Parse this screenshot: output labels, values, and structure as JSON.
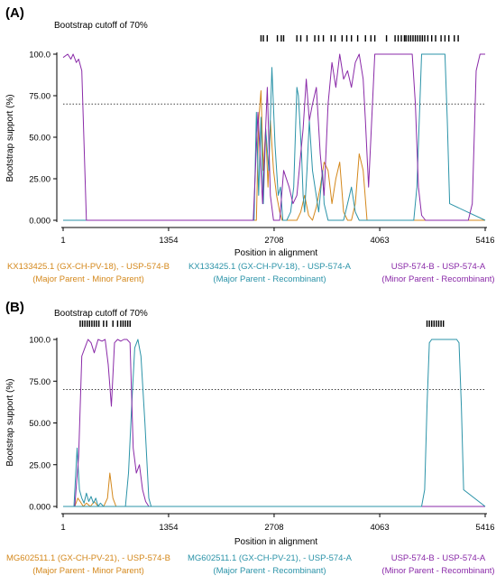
{
  "colors": {
    "orange": "#d4881c",
    "teal": "#2b93a8",
    "purple": "#8a2aa8",
    "axis": "#000000",
    "cutoff_line": "#444444"
  },
  "chart_data": [
    {
      "type": "line",
      "panel_label": "(A)",
      "cutoff_label": "Bootstrap cutoff of 70%",
      "xlabel": "Position in alignment",
      "ylabel": "Bootstrap support (%)",
      "xlim": [
        1,
        5416
      ],
      "ylim": [
        0,
        100
      ],
      "x_ticks": [
        1,
        1354,
        2708,
        4063,
        5416
      ],
      "x_tick_labels": [
        "1",
        "1354",
        "2708",
        "4063",
        "5416"
      ],
      "y_ticks": [
        0,
        25,
        50,
        75,
        100
      ],
      "y_tick_labels": [
        "0.000",
        "25.00",
        "50.00",
        "75.00",
        "100.0"
      ],
      "cutoff": 70,
      "breakpoints": [
        2540,
        2570,
        2620,
        2750,
        2800,
        2830,
        3000,
        3050,
        3130,
        3230,
        3280,
        3340,
        3440,
        3490,
        3580,
        3640,
        3700,
        3780,
        3880,
        3950,
        4000,
        4150,
        4260,
        4300,
        4340,
        4380,
        4400,
        4430,
        4460,
        4490,
        4520,
        4550,
        4580,
        4610,
        4640,
        4680,
        4730,
        4780,
        4850,
        4900,
        4950,
        5020,
        5070
      ],
      "legend": [
        {
          "series": 0,
          "line1": "KX133425.1 (GX-CH-PV-18), - USP-574-B",
          "line2": "(Major Parent - Minor Parent)"
        },
        {
          "series": 1,
          "line1": "KX133425.1 (GX-CH-PV-18), - USP-574-A",
          "line2": "(Major Parent - Recombinant)"
        },
        {
          "series": 2,
          "line1": "USP-574-B - USP-574-A",
          "line2": "(Minor Parent - Recombinant)"
        }
      ],
      "series": [
        {
          "color": "orange",
          "x": [
            1,
            2480,
            2510,
            2540,
            2570,
            2600,
            2630,
            2660,
            2700,
            2740,
            2780,
            2810,
            2850,
            3000,
            3050,
            3100,
            3150,
            3200,
            3250,
            3300,
            3350,
            3400,
            3450,
            3500,
            3550,
            3600,
            3650,
            3700,
            3750,
            3800,
            3850,
            3900,
            5416
          ],
          "y": [
            0,
            0,
            60,
            78,
            30,
            55,
            20,
            60,
            30,
            15,
            5,
            0,
            0,
            0,
            5,
            15,
            3,
            0,
            8,
            20,
            35,
            30,
            10,
            25,
            35,
            5,
            0,
            0,
            10,
            40,
            30,
            0,
            0
          ]
        },
        {
          "color": "teal",
          "x": [
            1,
            2450,
            2480,
            2510,
            2540,
            2570,
            2600,
            2640,
            2680,
            2720,
            2760,
            2790,
            2820,
            2870,
            2920,
            2960,
            3000,
            3020,
            3060,
            3080,
            3100,
            3130,
            3160,
            3200,
            3280,
            3330,
            3350,
            3400,
            3600,
            3650,
            3700,
            3750,
            3800,
            3900,
            4500,
            4540,
            4570,
            4600,
            4650,
            4700,
            4900,
            4930,
            4960,
            5416
          ],
          "y": [
            0,
            0,
            65,
            15,
            62,
            10,
            55,
            30,
            92,
            45,
            15,
            20,
            0,
            0,
            5,
            20,
            80,
            75,
            40,
            15,
            5,
            30,
            60,
            30,
            5,
            30,
            10,
            0,
            0,
            10,
            20,
            5,
            0,
            0,
            0,
            20,
            60,
            100,
            100,
            100,
            100,
            60,
            10,
            0
          ]
        },
        {
          "color": "purple",
          "x": [
            1,
            60,
            100,
            130,
            170,
            200,
            240,
            300,
            400,
            2440,
            2500,
            2560,
            2620,
            2660,
            2700,
            2740,
            2780,
            2830,
            2900,
            2950,
            3000,
            3050,
            3080,
            3120,
            3160,
            3200,
            3250,
            3300,
            3350,
            3400,
            3450,
            3500,
            3550,
            3600,
            3650,
            3700,
            3750,
            3800,
            3850,
            3880,
            3920,
            4000,
            4100,
            4480,
            4520,
            4560,
            4600,
            4650,
            5200,
            5250,
            5300,
            5350,
            5416
          ],
          "y": [
            98,
            100,
            97,
            100,
            95,
            97,
            90,
            0,
            0,
            0,
            65,
            10,
            80,
            15,
            0,
            0,
            0,
            30,
            20,
            10,
            15,
            40,
            55,
            85,
            60,
            70,
            80,
            40,
            15,
            70,
            95,
            80,
            100,
            85,
            90,
            80,
            95,
            100,
            85,
            60,
            20,
            100,
            100,
            100,
            70,
            20,
            3,
            0,
            0,
            10,
            90,
            100,
            100
          ]
        }
      ]
    },
    {
      "type": "line",
      "panel_label": "(B)",
      "cutoff_label": "Bootstrap cutoff of 70%",
      "xlabel": "Position in alignment",
      "ylabel": "Bootstrap support (%)",
      "xlim": [
        1,
        5416
      ],
      "ylim": [
        0,
        100
      ],
      "x_ticks": [
        1,
        1354,
        2708,
        4063,
        5416
      ],
      "x_tick_labels": [
        "1",
        "1354",
        "2708",
        "4063",
        "5416"
      ],
      "y_ticks": [
        0,
        25,
        50,
        75,
        100
      ],
      "y_tick_labels": [
        "0.000",
        "25.00",
        "50.00",
        "75.00",
        "100.0"
      ],
      "cutoff": 70,
      "breakpoints": [
        220,
        250,
        280,
        310,
        340,
        370,
        400,
        430,
        460,
        520,
        560,
        640,
        700,
        740,
        770,
        800,
        830,
        860,
        4670,
        4700,
        4730,
        4760,
        4790,
        4820,
        4850,
        4880
      ],
      "legend": [
        {
          "series": 0,
          "line1": "MG602511.1 (GX-CH-PV-21), - USP-574-B",
          "line2": "(Major Parent - Minor Parent)"
        },
        {
          "series": 1,
          "line1": "MG602511.1 (GX-CH-PV-21), - USP-574-A",
          "line2": "(Major Parent - Recombinant)"
        },
        {
          "series": 2,
          "line1": "USP-574-B - USP-574-A",
          "line2": "(Minor Parent - Recombinant)"
        }
      ],
      "series": [
        {
          "color": "orange",
          "x": [
            1,
            150,
            190,
            220,
            260,
            300,
            350,
            400,
            450,
            520,
            570,
            600,
            640,
            680,
            720,
            800,
            5416
          ],
          "y": [
            0,
            0,
            5,
            3,
            0,
            2,
            0,
            3,
            0,
            0,
            5,
            20,
            5,
            0,
            0,
            0,
            0
          ]
        },
        {
          "color": "teal",
          "x": [
            1,
            140,
            180,
            210,
            240,
            270,
            300,
            330,
            360,
            390,
            420,
            450,
            480,
            520,
            560,
            600,
            640,
            680,
            720,
            760,
            800,
            840,
            880,
            920,
            960,
            1000,
            1050,
            1100,
            1130,
            5416
          ],
          "y": [
            0,
            0,
            35,
            10,
            5,
            2,
            8,
            3,
            6,
            2,
            5,
            0,
            2,
            0,
            0,
            0,
            0,
            0,
            0,
            0,
            0,
            20,
            60,
            95,
            100,
            90,
            50,
            5,
            0,
            0
          ]
        },
        {
          "color": "purple",
          "x": [
            1,
            150,
            200,
            240,
            280,
            320,
            360,
            400,
            450,
            500,
            540,
            580,
            620,
            660,
            700,
            740,
            780,
            820,
            860,
            900,
            940,
            980,
            1020,
            1060,
            1100,
            5416
          ],
          "y": [
            0,
            0,
            30,
            90,
            95,
            100,
            98,
            92,
            100,
            99,
            100,
            85,
            60,
            98,
            100,
            99,
            100,
            100,
            98,
            35,
            20,
            25,
            10,
            3,
            0,
            0
          ]
        }
      ]
    },
    {
      "type": "line",
      "panel_label": "",
      "cutoff_label": "",
      "xlabel": "",
      "ylabel": "",
      "series": [
        {
          "color": "teal",
          "x": [
            1,
            4600,
            4640,
            4670,
            4700,
            4730,
            5050,
            5080,
            5110,
            5140,
            5416
          ],
          "y": [
            0,
            0,
            10,
            60,
            98,
            100,
            100,
            98,
            60,
            10,
            0
          ]
        }
      ]
    }
  ]
}
